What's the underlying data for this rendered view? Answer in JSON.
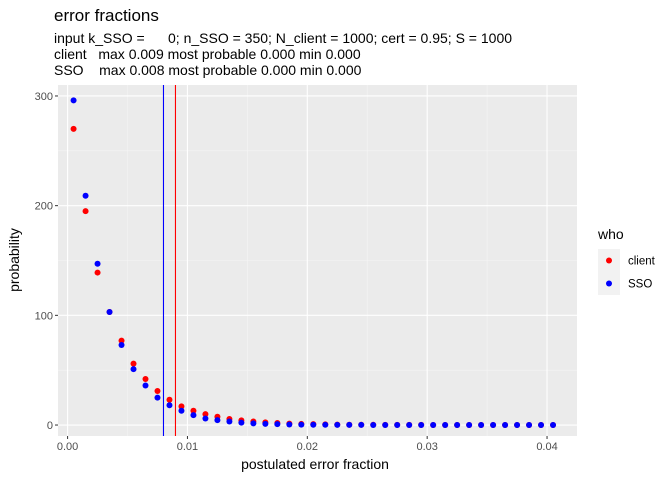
{
  "chart_data": {
    "type": "scatter",
    "title": "error fractions",
    "subtitle_lines": [
      "input k_SSO =      0; n_SSO = 350; N_client = 1000; cert = 0.95; S = 1000",
      "client   max 0.009 most probable 0.000 min 0.000",
      "SSO    max 0.008 most probable 0.000 min 0.000"
    ],
    "xlabel": "postulated error fraction",
    "ylabel": "probability",
    "xlim": [
      -0.0008,
      0.0425
    ],
    "ylim": [
      -10,
      310
    ],
    "x_ticks": [
      0.0,
      0.01,
      0.02,
      0.03,
      0.04
    ],
    "x_tick_labels": [
      "0.00",
      "0.01",
      "0.02",
      "0.03",
      "0.04"
    ],
    "y_ticks": [
      0,
      100,
      200,
      300
    ],
    "y_tick_labels": [
      "0",
      "100",
      "200",
      "300"
    ],
    "grid": true,
    "legend": {
      "title": "who",
      "placement": "right"
    },
    "series": [
      {
        "name": "client",
        "color": "#ff0000",
        "x": [
          0.0005,
          0.0015,
          0.0025,
          0.0035,
          0.0045,
          0.0055,
          0.0065,
          0.0075,
          0.0085,
          0.0095,
          0.0105,
          0.0115,
          0.0125,
          0.0135,
          0.0145,
          0.0155,
          0.0165,
          0.0175,
          0.0185,
          0.0195,
          0.0205,
          0.0215,
          0.0225,
          0.0235,
          0.0245,
          0.0255,
          0.0265,
          0.0275,
          0.0285,
          0.0295,
          0.0305,
          0.0315,
          0.0325,
          0.0335,
          0.0345,
          0.0355,
          0.0365,
          0.0375,
          0.0385,
          0.0395,
          0.0405
        ],
        "y": [
          270,
          195,
          139,
          103,
          77,
          56,
          42,
          31,
          23,
          17,
          13,
          10,
          7.5,
          5.5,
          4.2,
          3.2,
          2.4,
          1.8,
          1.3,
          1.0,
          0.8,
          0.6,
          0.4,
          0.3,
          0.2,
          0.2,
          0.1,
          0.1,
          0.1,
          0.1,
          0,
          0,
          0,
          0,
          0,
          0,
          0,
          0,
          0,
          0,
          0
        ]
      },
      {
        "name": "SSO",
        "color": "#0000ff",
        "x": [
          0.0005,
          0.0015,
          0.0025,
          0.0035,
          0.0045,
          0.0055,
          0.0065,
          0.0075,
          0.0085,
          0.0095,
          0.0105,
          0.0115,
          0.0125,
          0.0135,
          0.0145,
          0.0155,
          0.0165,
          0.0175,
          0.0185,
          0.0195,
          0.0205,
          0.0215,
          0.0225,
          0.0235,
          0.0245,
          0.0255,
          0.0265,
          0.0275,
          0.0285,
          0.0295,
          0.0305,
          0.0315,
          0.0325,
          0.0335,
          0.0345,
          0.0355,
          0.0365,
          0.0375,
          0.0385,
          0.0395,
          0.0405
        ],
        "y": [
          296,
          209,
          147,
          103,
          73,
          51,
          36,
          25,
          18,
          13,
          9,
          6,
          4.5,
          3.2,
          2.2,
          1.5,
          1.1,
          0.8,
          0.5,
          0.4,
          0.3,
          0.2,
          0.1,
          0.1,
          0.1,
          0,
          0,
          0,
          0,
          0,
          0,
          0,
          0,
          0,
          0,
          0,
          0,
          0,
          0,
          0,
          0
        ]
      }
    ],
    "vlines": [
      {
        "x": 0.008,
        "color": "#0000ff"
      },
      {
        "x": 0.009,
        "color": "#ff0000"
      }
    ]
  }
}
